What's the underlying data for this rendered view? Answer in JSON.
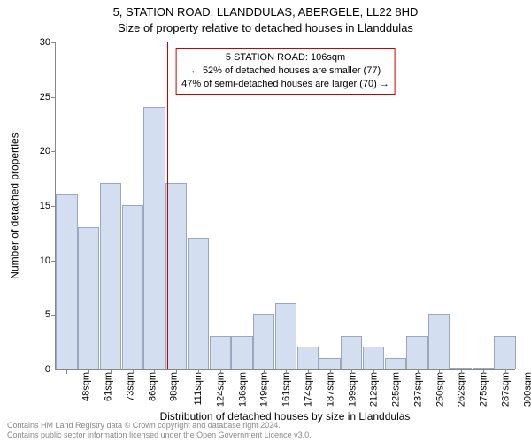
{
  "title_main": "5, STATION ROAD, LLANDDULAS, ABERGELE, LL22 8HD",
  "title_sub": "Size of property relative to detached houses in Llanddulas",
  "ylabel": "Number of detached properties",
  "xlabel": "Distribution of detached houses by size in Llanddulas",
  "chart": {
    "type": "bar",
    "ylim": [
      0,
      30
    ],
    "ytick_step": 5,
    "categories": [
      "48sqm",
      "61sqm",
      "73sqm",
      "86sqm",
      "98sqm",
      "111sqm",
      "124sqm",
      "136sqm",
      "149sqm",
      "161sqm",
      "174sqm",
      "187sqm",
      "199sqm",
      "212sqm",
      "225sqm",
      "237sqm",
      "250sqm",
      "262sqm",
      "275sqm",
      "287sqm",
      "300sqm"
    ],
    "values": [
      16,
      13,
      17,
      15,
      24,
      17,
      12,
      3,
      3,
      5,
      6,
      2,
      1,
      3,
      2,
      1,
      3,
      5,
      0,
      0,
      3
    ],
    "bar_color": "#d3def0",
    "bar_border_color": "#9aa7bf",
    "bar_width_ratio": 0.98,
    "axis_color": "#888888",
    "tick_fontsize": 11,
    "label_fontsize": 12,
    "title_fontsize": 13,
    "background_color": "#ffffff",
    "marker": {
      "position_sqm": 106,
      "color": "#cc0000"
    }
  },
  "annotation": {
    "line1": "5 STATION ROAD: 106sqm",
    "line2": "← 52% of detached houses are smaller (77)",
    "line3": "47% of semi-detached houses are larger (70) →",
    "border_color": "#cc0000"
  },
  "footer": {
    "line1": "Contains HM Land Registry data © Crown copyright and database right 2024.",
    "line2": "Contains public sector information licensed under the Open Government Licence v3.0."
  }
}
